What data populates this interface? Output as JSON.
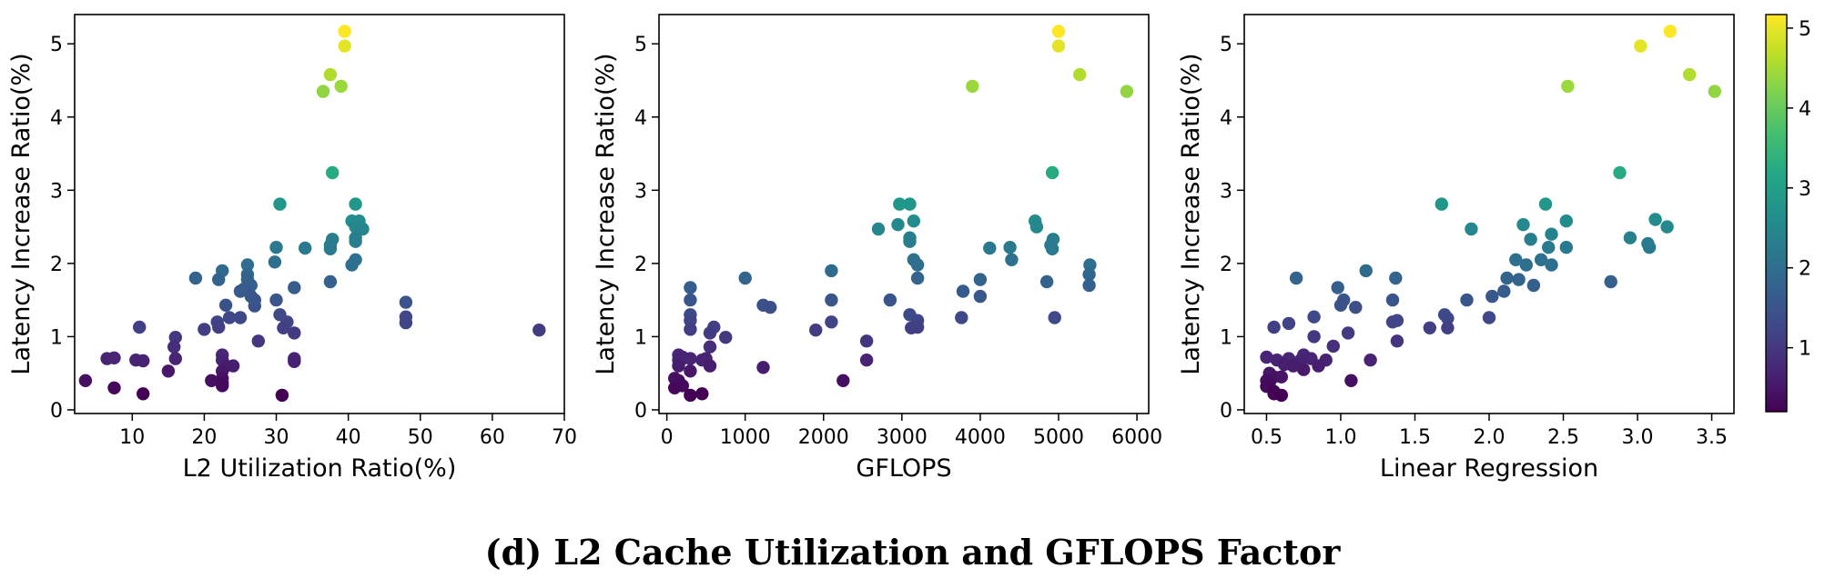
{
  "caption": "(d) L2 Cache Utilization and GFLOPS Factor",
  "colormap": {
    "name": "viridis",
    "min": 0.2,
    "max": 5.17,
    "ticks": [
      "1",
      "2",
      "3",
      "4",
      "5"
    ]
  },
  "chart_data": [
    {
      "type": "scatter",
      "xlabel": "L2 Utilization Ratio(%)",
      "ylabel": "Latency Increase Ratio(%)",
      "xlim": [
        2,
        70
      ],
      "ylim": [
        -0.05,
        5.4
      ],
      "xticks": [
        "10",
        "20",
        "30",
        "40",
        "50",
        "60",
        "70"
      ],
      "yticks": [
        "0",
        "1",
        "2",
        "3",
        "4",
        "5"
      ],
      "points": [
        [
          39.5,
          5.17
        ],
        [
          39.5,
          4.97
        ],
        [
          37.5,
          4.58
        ],
        [
          36.5,
          4.35
        ],
        [
          39.0,
          4.42
        ],
        [
          37.8,
          3.24
        ],
        [
          30.5,
          2.81
        ],
        [
          41.0,
          2.81
        ],
        [
          40.5,
          2.58
        ],
        [
          41.5,
          2.58
        ],
        [
          41.0,
          2.5
        ],
        [
          42.0,
          2.47
        ],
        [
          41.0,
          2.35
        ],
        [
          37.8,
          2.33
        ],
        [
          41.0,
          2.3
        ],
        [
          37.5,
          2.25
        ],
        [
          34.0,
          2.21
        ],
        [
          30.0,
          2.22
        ],
        [
          37.5,
          2.2
        ],
        [
          41.0,
          2.05
        ],
        [
          29.8,
          2.02
        ],
        [
          40.5,
          1.98
        ],
        [
          26.0,
          1.98
        ],
        [
          22.5,
          1.9
        ],
        [
          26.0,
          1.85
        ],
        [
          18.8,
          1.8
        ],
        [
          22.0,
          1.78
        ],
        [
          26.0,
          1.78
        ],
        [
          37.5,
          1.75
        ],
        [
          26.5,
          1.7
        ],
        [
          32.5,
          1.67
        ],
        [
          25.5,
          1.65
        ],
        [
          25.0,
          1.62
        ],
        [
          26.5,
          1.55
        ],
        [
          30.0,
          1.5
        ],
        [
          27.0,
          1.42
        ],
        [
          27.0,
          1.5
        ],
        [
          23.0,
          1.43
        ],
        [
          48.0,
          1.47
        ],
        [
          30.5,
          1.3
        ],
        [
          23.5,
          1.26
        ],
        [
          25.0,
          1.26
        ],
        [
          48.0,
          1.27
        ],
        [
          21.8,
          1.2
        ],
        [
          31.5,
          1.2
        ],
        [
          11.0,
          1.13
        ],
        [
          20.0,
          1.1
        ],
        [
          22.0,
          1.13
        ],
        [
          31.0,
          1.12
        ],
        [
          48.0,
          1.19
        ],
        [
          66.5,
          1.09
        ],
        [
          32.5,
          1.05
        ],
        [
          16.0,
          0.99
        ],
        [
          27.5,
          0.94
        ],
        [
          15.8,
          0.86
        ],
        [
          6.5,
          0.7
        ],
        [
          7.5,
          0.71
        ],
        [
          10.5,
          0.68
        ],
        [
          11.5,
          0.67
        ],
        [
          16.0,
          0.7
        ],
        [
          22.5,
          0.75
        ],
        [
          22.5,
          0.68
        ],
        [
          32.5,
          0.7
        ],
        [
          32.5,
          0.66
        ],
        [
          15.0,
          0.53
        ],
        [
          23.0,
          0.6
        ],
        [
          24.0,
          0.6
        ],
        [
          22.5,
          0.53
        ],
        [
          22.5,
          0.43
        ],
        [
          21.0,
          0.4
        ],
        [
          22.5,
          0.37
        ],
        [
          22.5,
          0.33
        ],
        [
          3.5,
          0.4
        ],
        [
          7.5,
          0.3
        ],
        [
          11.5,
          0.22
        ],
        [
          30.8,
          0.2
        ]
      ]
    },
    {
      "type": "scatter",
      "xlabel": "GFLOPS",
      "ylabel": "Latency Increase Ratio(%)",
      "xlim": [
        -100,
        6150
      ],
      "ylim": [
        -0.05,
        5.4
      ],
      "xticks": [
        "0",
        "1000",
        "2000",
        "3000",
        "4000",
        "5000",
        "6000"
      ],
      "yticks": [
        "0",
        "1",
        "2",
        "3",
        "4",
        "5"
      ],
      "points": [
        [
          5000,
          5.17
        ],
        [
          5000,
          4.97
        ],
        [
          5270,
          4.58
        ],
        [
          5870,
          4.35
        ],
        [
          3900,
          4.42
        ],
        [
          4920,
          3.24
        ],
        [
          2970,
          2.81
        ],
        [
          3100,
          2.81
        ],
        [
          4700,
          2.58
        ],
        [
          3150,
          2.58
        ],
        [
          2950,
          2.53
        ],
        [
          4720,
          2.5
        ],
        [
          2700,
          2.47
        ],
        [
          4930,
          2.33
        ],
        [
          3100,
          2.35
        ],
        [
          4900,
          2.25
        ],
        [
          4120,
          2.21
        ],
        [
          4380,
          2.22
        ],
        [
          3100,
          2.3
        ],
        [
          4920,
          2.2
        ],
        [
          3150,
          2.05
        ],
        [
          4400,
          2.05
        ],
        [
          3200,
          1.98
        ],
        [
          5400,
          1.98
        ],
        [
          2100,
          1.9
        ],
        [
          1000,
          1.8
        ],
        [
          3200,
          1.8
        ],
        [
          5390,
          1.85
        ],
        [
          4850,
          1.75
        ],
        [
          4000,
          1.78
        ],
        [
          300,
          1.67
        ],
        [
          5390,
          1.7
        ],
        [
          3780,
          1.62
        ],
        [
          4000,
          1.55
        ],
        [
          2850,
          1.5
        ],
        [
          2100,
          1.5
        ],
        [
          300,
          1.5
        ],
        [
          1230,
          1.43
        ],
        [
          1320,
          1.4
        ],
        [
          3100,
          1.3
        ],
        [
          300,
          1.3
        ],
        [
          4950,
          1.26
        ],
        [
          3760,
          1.26
        ],
        [
          3200,
          1.22
        ],
        [
          300,
          1.22
        ],
        [
          2100,
          1.2
        ],
        [
          600,
          1.13
        ],
        [
          300,
          1.1
        ],
        [
          3120,
          1.12
        ],
        [
          3200,
          1.13
        ],
        [
          1900,
          1.09
        ],
        [
          550,
          1.05
        ],
        [
          750,
          0.99
        ],
        [
          2550,
          0.94
        ],
        [
          550,
          0.86
        ],
        [
          150,
          0.75
        ],
        [
          200,
          0.72
        ],
        [
          300,
          0.7
        ],
        [
          450,
          0.68
        ],
        [
          500,
          0.7
        ],
        [
          150,
          0.68
        ],
        [
          2550,
          0.68
        ],
        [
          200,
          0.7
        ],
        [
          550,
          0.6
        ],
        [
          300,
          0.53
        ],
        [
          1230,
          0.58
        ],
        [
          150,
          0.6
        ],
        [
          100,
          0.43
        ],
        [
          150,
          0.4
        ],
        [
          2250,
          0.4
        ],
        [
          150,
          0.37
        ],
        [
          200,
          0.33
        ],
        [
          100,
          0.3
        ],
        [
          450,
          0.22
        ],
        [
          300,
          0.2
        ]
      ]
    },
    {
      "type": "scatter",
      "xlabel": "Linear Regression",
      "ylabel": "Latency Increase Ratio(%)",
      "xlim": [
        0.35,
        3.65
      ],
      "ylim": [
        -0.05,
        5.4
      ],
      "xticks": [
        "0.5",
        "1.0",
        "1.5",
        "2.0",
        "2.5",
        "3.0",
        "3.5"
      ],
      "yticks": [
        "0",
        "1",
        "2",
        "3",
        "4",
        "5"
      ],
      "points": [
        [
          3.22,
          5.17
        ],
        [
          3.02,
          4.97
        ],
        [
          3.35,
          4.58
        ],
        [
          3.52,
          4.35
        ],
        [
          2.53,
          4.42
        ],
        [
          2.88,
          3.24
        ],
        [
          1.68,
          2.81
        ],
        [
          2.38,
          2.81
        ],
        [
          3.12,
          2.6
        ],
        [
          2.52,
          2.58
        ],
        [
          2.23,
          2.53
        ],
        [
          3.2,
          2.5
        ],
        [
          1.88,
          2.47
        ],
        [
          2.42,
          2.4
        ],
        [
          2.95,
          2.35
        ],
        [
          2.28,
          2.33
        ],
        [
          3.07,
          2.27
        ],
        [
          3.08,
          2.22
        ],
        [
          2.4,
          2.22
        ],
        [
          2.52,
          2.22
        ],
        [
          2.18,
          2.05
        ],
        [
          2.35,
          2.05
        ],
        [
          2.42,
          1.98
        ],
        [
          2.25,
          1.98
        ],
        [
          1.17,
          1.9
        ],
        [
          2.12,
          1.8
        ],
        [
          2.2,
          1.78
        ],
        [
          0.7,
          1.8
        ],
        [
          1.37,
          1.8
        ],
        [
          2.82,
          1.75
        ],
        [
          2.3,
          1.7
        ],
        [
          0.98,
          1.67
        ],
        [
          2.1,
          1.62
        ],
        [
          2.02,
          1.55
        ],
        [
          1.02,
          1.5
        ],
        [
          1.35,
          1.5
        ],
        [
          1.85,
          1.5
        ],
        [
          1.0,
          1.43
        ],
        [
          1.1,
          1.4
        ],
        [
          1.7,
          1.3
        ],
        [
          0.82,
          1.27
        ],
        [
          1.72,
          1.25
        ],
        [
          2.0,
          1.26
        ],
        [
          1.38,
          1.22
        ],
        [
          1.35,
          1.2
        ],
        [
          0.65,
          1.18
        ],
        [
          0.55,
          1.13
        ],
        [
          1.72,
          1.12
        ],
        [
          1.6,
          1.12
        ],
        [
          1.05,
          1.05
        ],
        [
          0.82,
          1.0
        ],
        [
          1.38,
          0.94
        ],
        [
          0.95,
          0.87
        ],
        [
          0.5,
          0.72
        ],
        [
          0.57,
          0.68
        ],
        [
          0.65,
          0.7
        ],
        [
          0.75,
          0.75
        ],
        [
          0.8,
          0.7
        ],
        [
          0.9,
          0.68
        ],
        [
          1.2,
          0.68
        ],
        [
          0.73,
          0.68
        ],
        [
          0.62,
          0.62
        ],
        [
          0.68,
          0.6
        ],
        [
          0.75,
          0.55
        ],
        [
          0.85,
          0.6
        ],
        [
          0.52,
          0.5
        ],
        [
          0.55,
          0.45
        ],
        [
          0.6,
          0.45
        ],
        [
          0.5,
          0.4
        ],
        [
          1.07,
          0.4
        ],
        [
          0.52,
          0.37
        ],
        [
          0.5,
          0.32
        ],
        [
          0.55,
          0.25
        ],
        [
          0.55,
          0.22
        ],
        [
          0.6,
          0.2
        ]
      ]
    }
  ]
}
